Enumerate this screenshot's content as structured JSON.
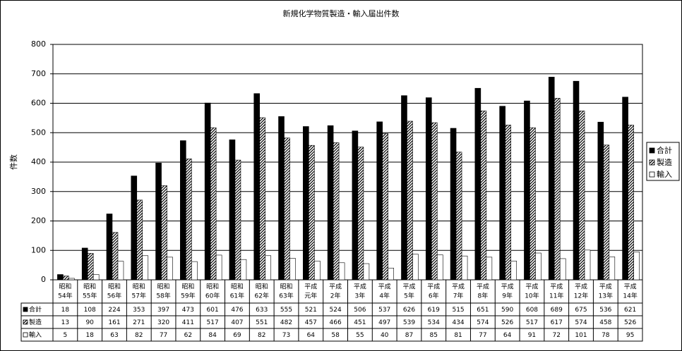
{
  "chart_data": {
    "type": "bar",
    "title": "新規化学物質製造・輸入届出件数",
    "y_label": "件数",
    "categories": [
      [
        "昭和",
        "54年"
      ],
      [
        "昭和",
        "55年"
      ],
      [
        "昭和",
        "56年"
      ],
      [
        "昭和",
        "57年"
      ],
      [
        "昭和",
        "58年"
      ],
      [
        "昭和",
        "59年"
      ],
      [
        "昭和",
        "60年"
      ],
      [
        "昭和",
        "61年"
      ],
      [
        "昭和",
        "62年"
      ],
      [
        "昭和",
        "63年"
      ],
      [
        "平成",
        "元年"
      ],
      [
        "平成",
        "2年"
      ],
      [
        "平成",
        "3年"
      ],
      [
        "平成",
        "4年"
      ],
      [
        "平成",
        "5年"
      ],
      [
        "平成",
        "6年"
      ],
      [
        "平成",
        "7年"
      ],
      [
        "平成",
        "8年"
      ],
      [
        "平成",
        "9年"
      ],
      [
        "平成",
        "10年"
      ],
      [
        "平成",
        "11年"
      ],
      [
        "平成",
        "12年"
      ],
      [
        "平成",
        "13年"
      ],
      [
        "平成",
        "14年"
      ]
    ],
    "series": [
      {
        "name": "合計",
        "color": "#000000",
        "pattern": "solid",
        "values": [
          18,
          108,
          224,
          353,
          397,
          473,
          601,
          476,
          633,
          555,
          521,
          524,
          506,
          537,
          626,
          619,
          515,
          651,
          590,
          608,
          689,
          675,
          536,
          621
        ]
      },
      {
        "name": "製造",
        "color": "#000000",
        "pattern": "diagonal",
        "values": [
          13,
          90,
          161,
          271,
          320,
          411,
          517,
          407,
          551,
          482,
          457,
          466,
          451,
          497,
          539,
          534,
          434,
          574,
          526,
          517,
          617,
          574,
          458,
          526
        ]
      },
      {
        "name": "輸入",
        "color": "#ffffff",
        "pattern": "solid",
        "values": [
          5,
          18,
          63,
          82,
          77,
          62,
          84,
          69,
          82,
          73,
          64,
          58,
          55,
          40,
          87,
          85,
          81,
          77,
          64,
          91,
          72,
          101,
          78,
          95
        ]
      }
    ],
    "ylim": [
      0,
      800
    ],
    "yticks": [
      0,
      100,
      200,
      300,
      400,
      500,
      600,
      700,
      800
    ],
    "grid": true,
    "legend": "right"
  }
}
